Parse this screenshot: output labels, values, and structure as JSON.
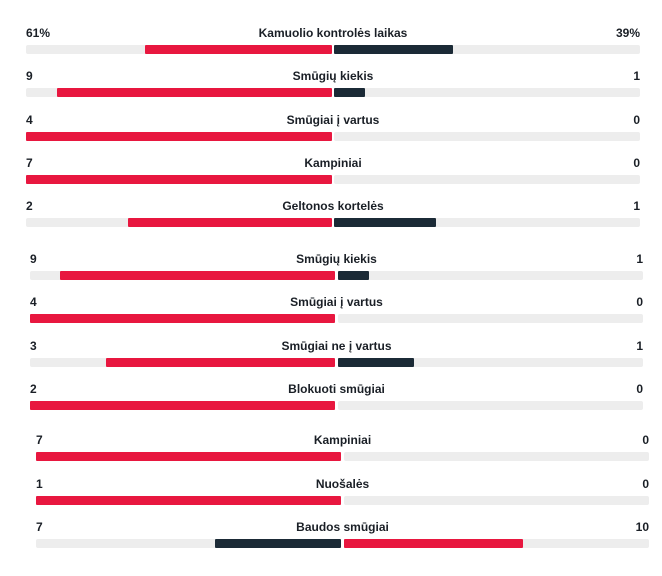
{
  "colors": {
    "home": "#e8173f",
    "away": "#1b2a36",
    "track": "#ededed"
  },
  "sections": [
    {
      "rows": [
        {
          "label": "Kamuolio kontrolės laikas",
          "left": "61%",
          "right": "39%",
          "left_value": 61,
          "right_value": 39
        },
        {
          "label": "Smūgių kiekis",
          "left": "9",
          "right": "1",
          "left_value": 9,
          "right_value": 1
        },
        {
          "label": "Smūgiai į vartus",
          "left": "4",
          "right": "0",
          "left_value": 4,
          "right_value": 0
        },
        {
          "label": "Kampiniai",
          "left": "7",
          "right": "0",
          "left_value": 7,
          "right_value": 0
        },
        {
          "label": "Geltonos kortelės",
          "left": "2",
          "right": "1",
          "left_value": 2,
          "right_value": 1
        }
      ]
    },
    {
      "rows": [
        {
          "label": "Smūgių kiekis",
          "left": "9",
          "right": "1",
          "left_value": 9,
          "right_value": 1
        },
        {
          "label": "Smūgiai į vartus",
          "left": "4",
          "right": "0",
          "left_value": 4,
          "right_value": 0
        },
        {
          "label": "Smūgiai ne į vartus",
          "left": "3",
          "right": "1",
          "left_value": 3,
          "right_value": 1
        },
        {
          "label": "Blokuoti smūgiai",
          "left": "2",
          "right": "0",
          "left_value": 2,
          "right_value": 0
        }
      ]
    },
    {
      "rows": [
        {
          "label": "Kampiniai",
          "left": "7",
          "right": "0",
          "left_value": 7,
          "right_value": 0
        },
        {
          "label": "Nuošalės",
          "left": "1",
          "right": "0",
          "left_value": 1,
          "right_value": 0
        },
        {
          "label": "Baudos smūgiai",
          "left": "7",
          "right": "10",
          "left_value": 7,
          "right_value": 10
        }
      ]
    }
  ]
}
